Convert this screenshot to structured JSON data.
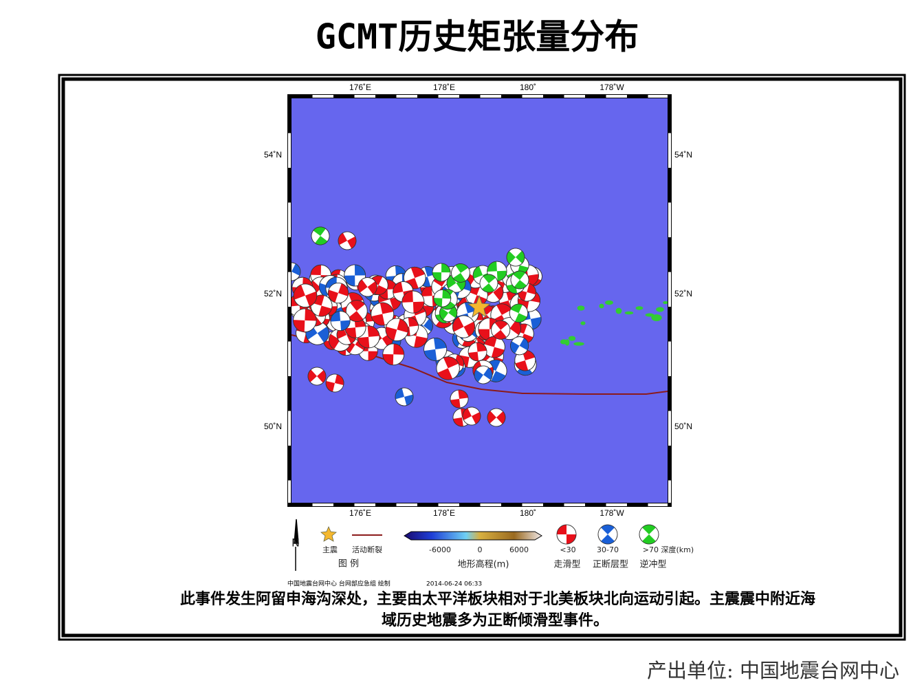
{
  "title": "GCMT历史矩张量分布",
  "map": {
    "top_labels": [
      "176˚E",
      "178˚E",
      "180˚",
      "178˚W"
    ],
    "bottom_labels": [
      "176˚E",
      "178˚E",
      "180˚",
      "178˚W"
    ],
    "left_labels": [
      "54˚N",
      "52˚N",
      "50˚N"
    ],
    "right_labels": [
      "54˚N",
      "52˚N",
      "50˚N"
    ]
  },
  "legend": {
    "north": "N",
    "mainshock": "主震",
    "fault": "活动断裂",
    "caption": "图  例",
    "colorbar_ticks": [
      "-6000",
      "0",
      "6000"
    ],
    "colorbar_label": "地形高程(m)",
    "depths": [
      "<30",
      "30-70",
      ">70 深度(km)"
    ],
    "types": [
      "走滑型",
      "正断层型",
      "逆冲型"
    ]
  },
  "credit": "中国地震台网中心 台网部应急组 绘制",
  "timestamp": "2014-06-24 06:33",
  "description": [
    "此事件发生阿留申海沟深处，主要由太平洋板块相对于北美板块北向运动引起。主震震中附近海",
    "域历史地震多为正断倾滑型事件。"
  ],
  "footer": "产出单位: 中国地震台网中心"
}
